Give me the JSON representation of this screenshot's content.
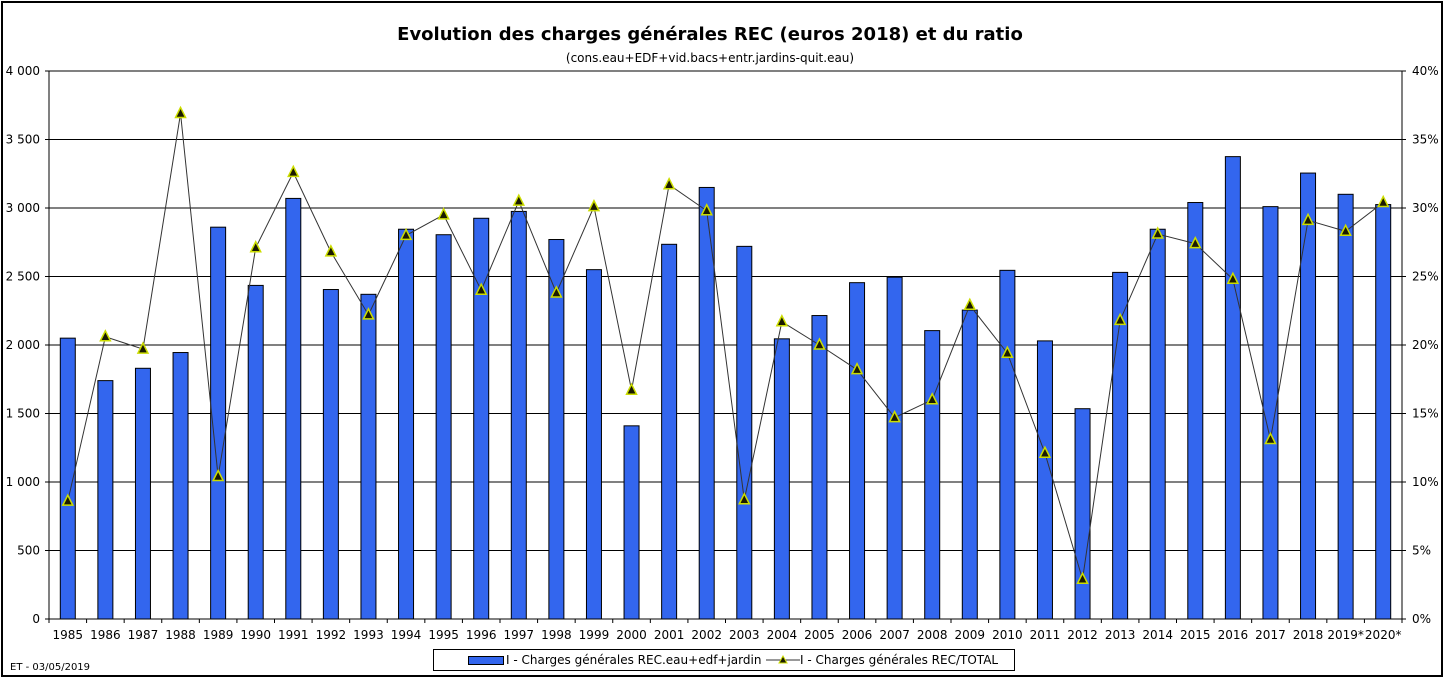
{
  "chart_data": {
    "type": "bar",
    "title": "Evolution des charges générales REC (euros 2018) et du ratio",
    "subtitle": "(cons.eau+EDF+vid.bacs+entr.jardins-quit.eau)",
    "categories": [
      "1985",
      "1986",
      "1987",
      "1988",
      "1989",
      "1990",
      "1991",
      "1992",
      "1993",
      "1994",
      "1995",
      "1996",
      "1997",
      "1998",
      "1999",
      "2000",
      "2001",
      "2002",
      "2003",
      "2004",
      "2005",
      "2006",
      "2007",
      "2008",
      "2009",
      "2010",
      "2011",
      "2012",
      "2013",
      "2014",
      "2015",
      "2016",
      "2017",
      "2018",
      "2019*",
      "2020*"
    ],
    "series": [
      {
        "name": "I - Charges générales REC.eau+edf+jardin",
        "type": "bar",
        "axis": "left",
        "color": "#3366ee",
        "values": [
          2050,
          1740,
          1830,
          1945,
          2860,
          2435,
          3070,
          2405,
          2370,
          2845,
          2805,
          2925,
          2975,
          2770,
          2550,
          1410,
          2735,
          3150,
          2720,
          2045,
          2215,
          2455,
          2495,
          2105,
          2255,
          2545,
          2030,
          1535,
          2530,
          2845,
          3040,
          3375,
          3010,
          3255,
          3100,
          3025
        ]
      },
      {
        "name": "I - Charges générales REC/TOTAL",
        "type": "line",
        "axis": "right",
        "color": "#333333",
        "marker_color": "#ccdd00",
        "values": [
          0.086,
          0.206,
          0.197,
          0.369,
          0.104,
          0.271,
          0.326,
          0.268,
          0.222,
          0.28,
          0.295,
          0.24,
          0.305,
          0.238,
          0.301,
          0.167,
          0.317,
          0.298,
          0.087,
          0.217,
          0.2,
          0.182,
          0.147,
          0.16,
          0.229,
          0.194,
          0.121,
          0.029,
          0.218,
          0.281,
          0.274,
          0.248,
          0.131,
          0.291,
          0.283,
          0.304
        ]
      }
    ],
    "y_left": {
      "ylim": [
        0,
        4000
      ],
      "ticks": [
        0,
        500,
        1000,
        1500,
        2000,
        2500,
        3000,
        3500,
        4000
      ],
      "tick_labels": [
        "0",
        "500",
        "1 000",
        "1 500",
        "2 000",
        "2 500",
        "3 000",
        "3 500",
        "4 000"
      ]
    },
    "y_right": {
      "ylim": [
        0,
        0.4
      ],
      "tick_labels": [
        "0%",
        "5%",
        "10%",
        "15%",
        "20%",
        "25%",
        "30%",
        "35%",
        "40%"
      ]
    },
    "grid": true,
    "legend_position": "bottom"
  },
  "footnote": "ET - 03/05/2019"
}
